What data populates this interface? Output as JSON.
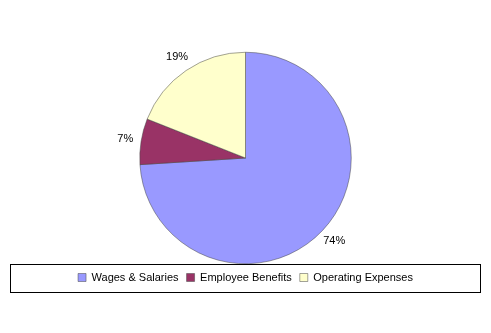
{
  "chart_data": {
    "type": "pie",
    "categories": [
      "Wages & Salaries",
      "Employee Benefits",
      "Operating Expenses"
    ],
    "values": [
      74,
      7,
      19
    ],
    "value_labels": [
      "74%",
      "7%",
      "19%"
    ],
    "colors": [
      "#9999ff",
      "#993366",
      "#ffffcc"
    ],
    "data_labels": true,
    "legend": "bottom"
  }
}
